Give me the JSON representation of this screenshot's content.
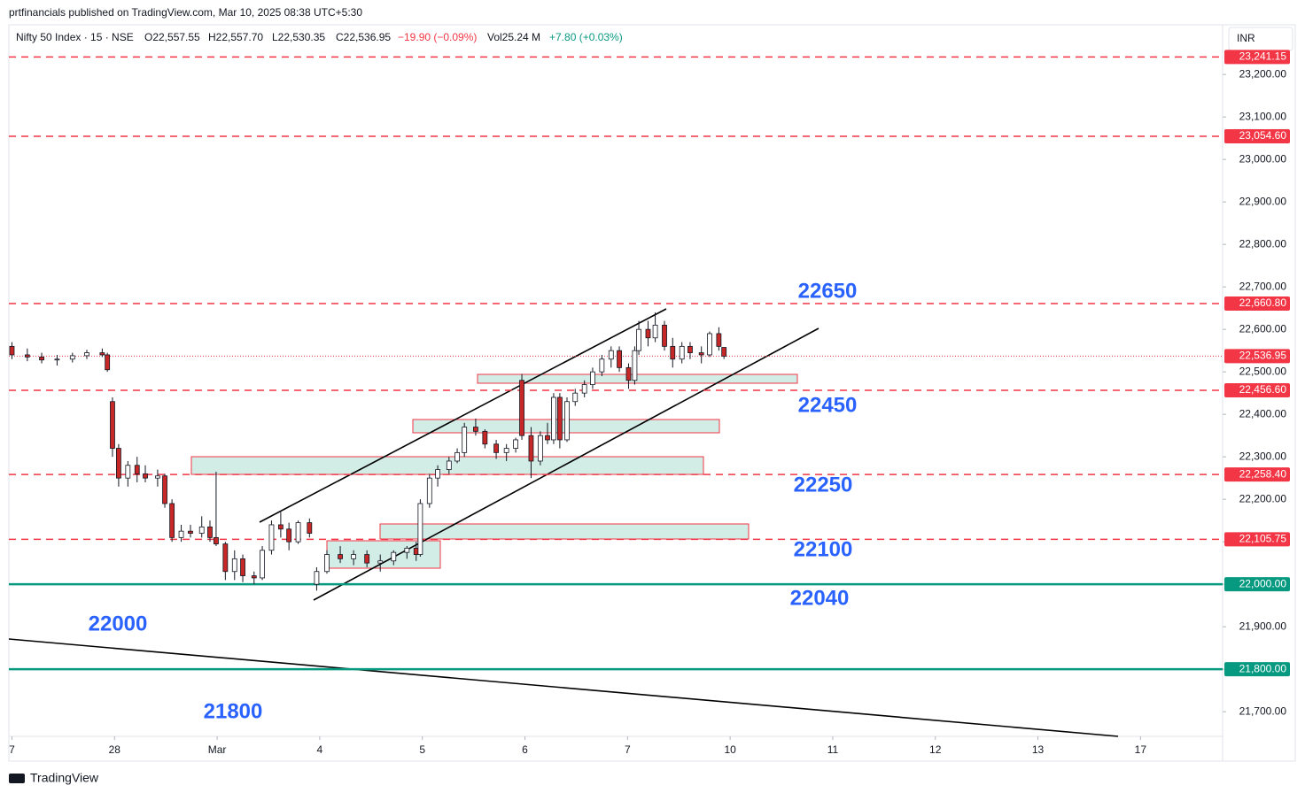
{
  "header": {
    "published": "prtfinancials published on TradingView.com, Mar 10, 2025 08:38 UTC+5:30",
    "symbol": "Nifty 50 Index · 15 · NSE",
    "ohlc": [
      "O22,557.55",
      "H22,557.70",
      "L22,530.35",
      "C22,536.95"
    ],
    "change": "−19.90 (−0.09%)",
    "volume": "Vol25.24 M",
    "volume_change": "+7.80 (+0.03%)",
    "currency": "INR"
  },
  "footer": {
    "brand": "TradingView"
  },
  "chart_data": {
    "type": "candlestick",
    "up_color": "#ffffff",
    "down_color": "#c62828",
    "x": [
      0,
      0.15,
      0.29,
      0.44,
      0.59,
      0.73,
      0.88,
      0.93,
      0.98,
      1.04,
      1.13,
      1.22,
      1.3,
      1.42,
      1.49,
      1.56,
      1.65,
      1.74,
      1.85,
      1.93,
      1.99,
      2.08,
      2.17,
      2.25,
      2.36,
      2.44,
      2.53,
      2.62,
      2.7,
      2.79,
      2.9,
      2.97,
      3.07,
      3.2,
      3.33,
      3.46,
      3.59,
      3.72,
      3.85,
      3.94,
      3.98,
      4.07,
      4.15,
      4.26,
      4.34,
      4.41,
      4.52,
      4.61,
      4.72,
      4.82,
      4.91,
      4.97,
      5.06,
      5.15,
      5.22,
      5.28,
      5.34,
      5.41,
      5.49,
      5.58,
      5.66,
      5.75,
      5.84,
      5.92,
      6.01,
      6.07,
      6.11,
      6.2,
      6.27,
      6.36,
      6.44,
      6.53,
      6.61,
      6.72,
      6.8,
      6.89,
      6.94
    ],
    "open": [
      22560,
      22540,
      22535,
      22528,
      22530,
      22538,
      22545,
      22540,
      22430,
      22320,
      22250,
      22280,
      22260,
      22250,
      22255,
      22190,
      22110,
      22125,
      22120,
      22135,
      22110,
      22095,
      22030,
      22060,
      22020,
      22015,
      22080,
      22140,
      22130,
      22100,
      22145,
      22000,
      22030,
      22070,
      22060,
      22070,
      22050,
      22055,
      22075,
      22085,
      22070,
      22190,
      22250,
      22270,
      22290,
      22310,
      22370,
      22360,
      22330,
      22310,
      22320,
      22480,
      22350,
      22290,
      22350,
      22340,
      22440,
      22340,
      22430,
      22450,
      22470,
      22500,
      22530,
      22550,
      22510,
      22480,
      22550,
      22600,
      22580,
      22610,
      22560,
      22530,
      22560,
      22545,
      22540,
      22590,
      22557.55
    ],
    "high": [
      22570,
      22555,
      22545,
      22540,
      22545,
      22552,
      22555,
      22545,
      22440,
      22330,
      22290,
      22300,
      22280,
      22270,
      22260,
      22200,
      22140,
      22140,
      22160,
      22150,
      22265,
      22100,
      22080,
      22070,
      22030,
      22090,
      22150,
      22170,
      22145,
      22150,
      22155,
      22040,
      22080,
      22090,
      22080,
      22080,
      22070,
      22080,
      22090,
      22100,
      22200,
      22260,
      22280,
      22300,
      22320,
      22380,
      22390,
      22365,
      22340,
      22330,
      22345,
      22495,
      22370,
      22360,
      22380,
      22450,
      22450,
      22440,
      22460,
      22480,
      22510,
      22540,
      22560,
      22560,
      22520,
      22560,
      22620,
      22620,
      22640,
      22620,
      22580,
      22570,
      22570,
      22560,
      22595,
      22605,
      22557.7
    ],
    "low": [
      22530,
      22525,
      22520,
      22515,
      22522,
      22530,
      22535,
      22500,
      22300,
      22230,
      22230,
      22240,
      22240,
      22230,
      22180,
      22100,
      22100,
      22110,
      22110,
      22100,
      22090,
      22010,
      22010,
      22005,
      22000,
      22010,
      22070,
      22110,
      22080,
      22095,
      22110,
      21985,
      22025,
      22050,
      22045,
      22040,
      22030,
      22045,
      22060,
      22055,
      22065,
      22180,
      22230,
      22260,
      22285,
      22300,
      22350,
      22320,
      22295,
      22290,
      22310,
      22340,
      22250,
      22280,
      22330,
      22330,
      22320,
      22335,
      22420,
      22440,
      22460,
      22490,
      22510,
      22500,
      22460,
      22470,
      22540,
      22560,
      22570,
      22550,
      22510,
      22520,
      22530,
      22520,
      22535,
      22550,
      22530.35
    ],
    "close": [
      22540,
      22535,
      22528,
      22530,
      22538,
      22545,
      22540,
      22505,
      22320,
      22250,
      22280,
      22260,
      22250,
      22255,
      22190,
      22110,
      22125,
      22120,
      22135,
      22110,
      22095,
      22030,
      22060,
      22020,
      22015,
      22080,
      22140,
      22130,
      22100,
      22145,
      22120,
      22030,
      22070,
      22060,
      22070,
      22050,
      22055,
      22075,
      22085,
      22070,
      22190,
      22250,
      22270,
      22290,
      22310,
      22370,
      22360,
      22330,
      22310,
      22320,
      22340,
      22350,
      22290,
      22350,
      22340,
      22440,
      22340,
      22430,
      22450,
      22470,
      22500,
      22530,
      22550,
      22510,
      22480,
      22550,
      22600,
      22580,
      22610,
      22560,
      22530,
      22560,
      22545,
      22540,
      22590,
      22560,
      22536.95
    ],
    "xlim": [
      -0.03,
      11.8
    ],
    "xticks": [
      {
        "value": 0,
        "label": "7"
      },
      {
        "value": 1,
        "label": "28"
      },
      {
        "value": 2,
        "label": "Mar"
      },
      {
        "value": 3,
        "label": "4"
      },
      {
        "value": 4,
        "label": "5"
      },
      {
        "value": 5,
        "label": "6"
      },
      {
        "value": 6,
        "label": "7"
      },
      {
        "value": 7,
        "label": "10"
      },
      {
        "value": 8,
        "label": "11"
      },
      {
        "value": 9,
        "label": "12"
      },
      {
        "value": 10,
        "label": "13"
      },
      {
        "value": 11,
        "label": "17"
      }
    ],
    "ylim": [
      21642,
      23317
    ],
    "yticks": [
      {
        "value": 21700,
        "label": "21,700.00"
      },
      {
        "value": 21800,
        "label": "21,800.00"
      },
      {
        "value": 21900,
        "label": "21,900.00"
      },
      {
        "value": 22000,
        "label": "22,000.00"
      },
      {
        "value": 22100,
        "label": "22,100.00"
      },
      {
        "value": 22200,
        "label": "22,200.00"
      },
      {
        "value": 22300,
        "label": "22,300.00"
      },
      {
        "value": 22400,
        "label": "22,400.00"
      },
      {
        "value": 22500,
        "label": "22,500.00"
      },
      {
        "value": 22600,
        "label": "22,600.00"
      },
      {
        "value": 22700,
        "label": "22,700.00"
      },
      {
        "value": 22800,
        "label": "22,800.00"
      },
      {
        "value": 22900,
        "label": "22,900.00"
      },
      {
        "value": 23000,
        "label": "23,000.00"
      },
      {
        "value": 23100,
        "label": "23,100.00"
      },
      {
        "value": 23200,
        "label": "23,200.00"
      }
    ],
    "levels": [
      {
        "value": 23241.15,
        "label": "23,241.15",
        "color": "#f23645",
        "style": "dashed"
      },
      {
        "value": 23054.6,
        "label": "23,054.60",
        "color": "#f23645",
        "style": "dashed"
      },
      {
        "value": 22660.8,
        "label": "22,660.80",
        "color": "#f23645",
        "style": "dashed"
      },
      {
        "value": 22456.6,
        "label": "22,456.60",
        "color": "#f23645",
        "style": "dashed"
      },
      {
        "value": 22258.4,
        "label": "22,258.40",
        "color": "#f23645",
        "style": "dashed"
      },
      {
        "value": 22105.75,
        "label": "22,105.75",
        "color": "#f23645",
        "style": "dashed"
      },
      {
        "value": 22000,
        "label": "22,000.00",
        "color": "#089981",
        "style": "solid"
      },
      {
        "value": 21800,
        "label": "21,800.00",
        "color": "#089981",
        "style": "solid"
      }
    ],
    "last": {
      "value": 22536.95,
      "label": "22,536.95",
      "color": "#f23645"
    },
    "annotations": [
      "22650",
      "22450",
      "22250",
      "22100",
      "22040",
      "22000",
      "21800"
    ]
  }
}
